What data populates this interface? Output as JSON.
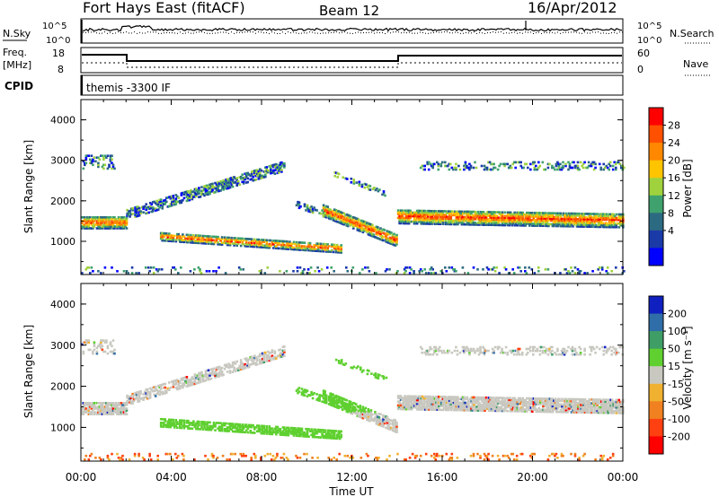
{
  "header": {
    "title": "Fort Hays East (fitACF)",
    "beam": "Beam 12",
    "date": "16/Apr/2012"
  },
  "side_labels": {
    "nsky": "N.Sky",
    "nsearch": "N.Search",
    "freq": "Freq.",
    "freq_unit": "[MHz]",
    "nave": "Nave",
    "cpid": "CPID",
    "cpid_value": "themis -3300 IF"
  },
  "noise_panel": {
    "left_ticks": [
      "10^5",
      "10^0"
    ],
    "right_ticks": [
      "10^5",
      "10^0"
    ]
  },
  "freq_panel": {
    "left_ticks": [
      "18",
      "8"
    ],
    "right_ticks": [
      "60",
      "0"
    ]
  },
  "chart_data": [
    {
      "type": "heatmap",
      "title": "",
      "xlabel": "Time UT",
      "ylabel": "Slant Range [km]",
      "x_ticks": [
        "00:00",
        "04:00",
        "08:00",
        "12:00",
        "16:00",
        "20:00",
        "00:00"
      ],
      "y_ticks": [
        "1000",
        "2000",
        "3000",
        "4000"
      ],
      "ylim": [
        180,
        4500
      ],
      "colorbar": {
        "label": "Power [dB]",
        "ticks": [
          "28",
          "24",
          "20",
          "16",
          "12",
          "8",
          "4"
        ],
        "colors": [
          "#ff0000",
          "#ff5000",
          "#ff8800",
          "#ffc400",
          "#9fd23c",
          "#3fa26e",
          "#2c6a82",
          "#1a3aa8",
          "#0000ff"
        ]
      }
    },
    {
      "type": "heatmap",
      "title": "",
      "xlabel": "Time UT",
      "ylabel": "Slant Range [km]",
      "x_ticks": [
        "00:00",
        "04:00",
        "08:00",
        "12:00",
        "16:00",
        "20:00",
        "00:00"
      ],
      "y_ticks": [
        "1000",
        "2000",
        "3000",
        "4000"
      ],
      "ylim": [
        180,
        4500
      ],
      "colorbar": {
        "label": "Velocity [m s⁻¹]",
        "ticks": [
          "200",
          "100",
          "50",
          "15",
          "-15",
          "-50",
          "-100",
          "-200"
        ],
        "colors": [
          "#1020c0",
          "#2f6ea8",
          "#3f9e66",
          "#5fd030",
          "#c8c8c0",
          "#f0b030",
          "#f08020",
          "#ff4010",
          "#ff0000"
        ]
      }
    }
  ]
}
